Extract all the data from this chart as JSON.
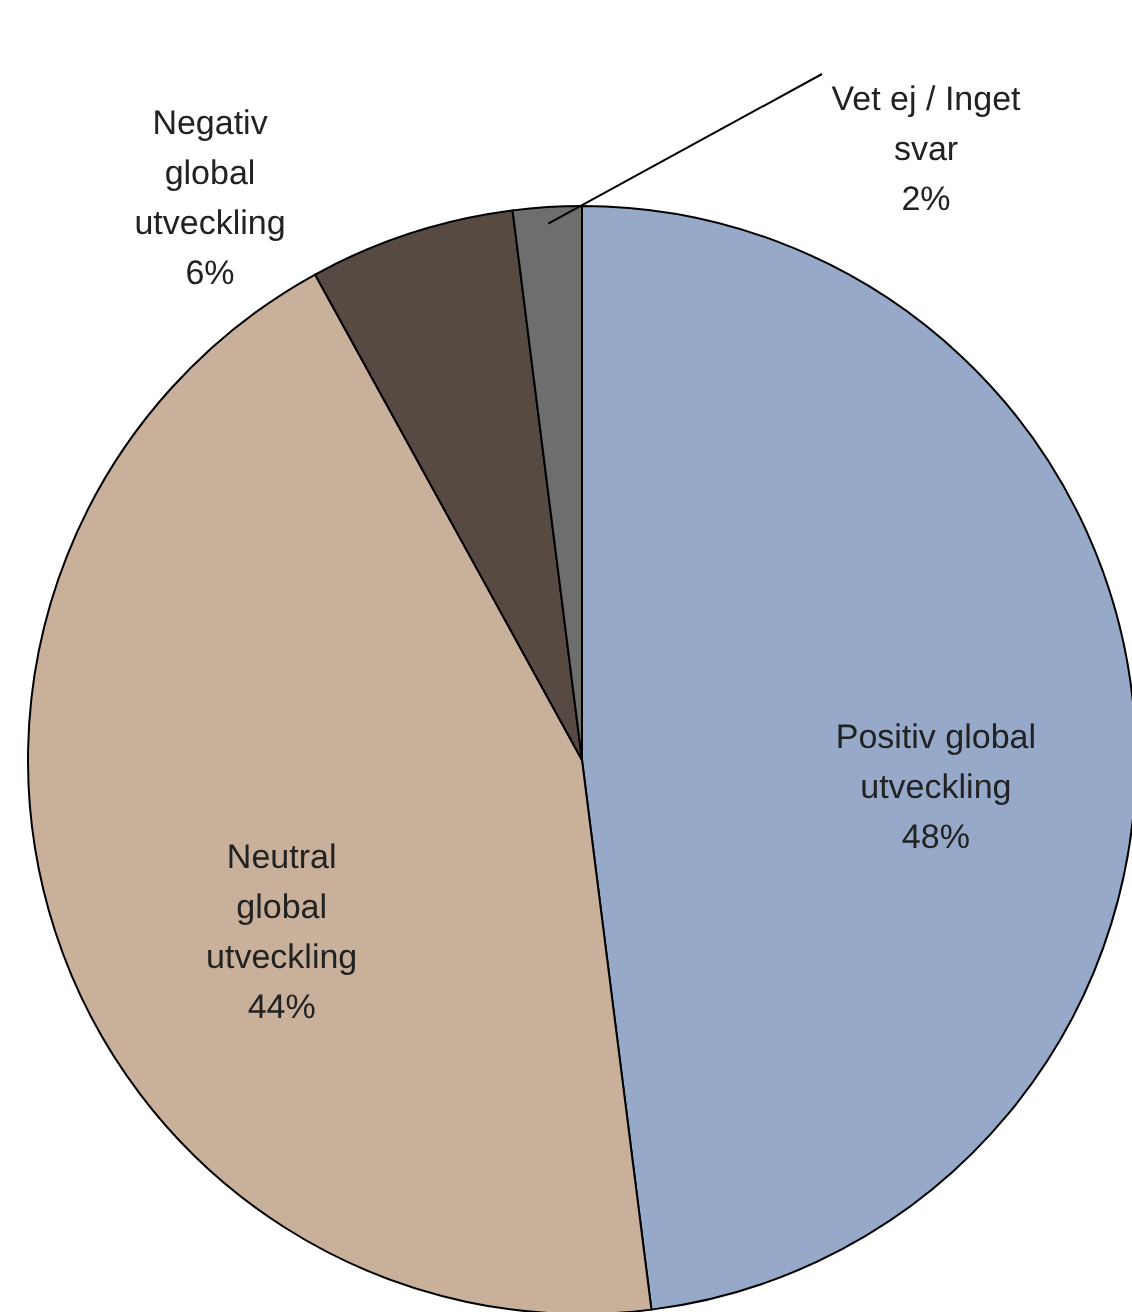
{
  "chart_data": {
    "type": "pie",
    "categories": [
      "Positiv global utveckling",
      "Neutral global utveckling",
      "Negativ global utveckling",
      "Vet ej / Inget svar"
    ],
    "values": [
      48,
      44,
      6,
      2
    ],
    "colors": [
      "#97a9c9",
      "#c8b09a",
      "#574a42",
      "#6e6e6e"
    ],
    "value_labels": [
      "48%",
      "44%",
      "6%",
      "2%"
    ]
  }
}
